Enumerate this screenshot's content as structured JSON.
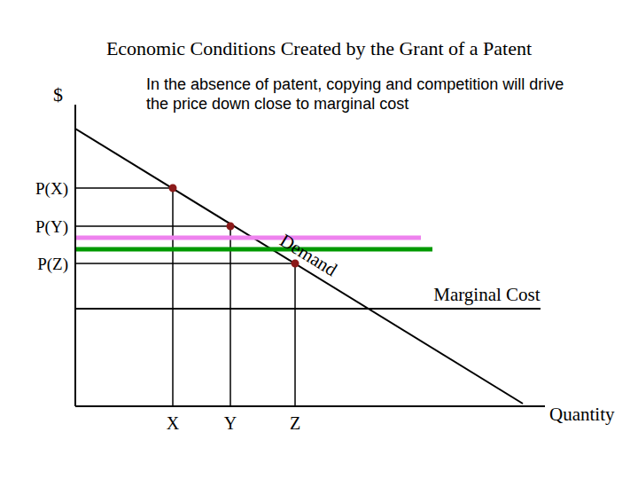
{
  "chart_data": {
    "type": "line",
    "title": "Economic Conditions Created by the Grant of a Patent",
    "annotation": "In the absence of patent, copying and competition will drive the price down close to marginal cost",
    "x_label": "Quantity",
    "y_label": "$",
    "xlim": [
      0,
      53
    ],
    "ylim": [
      0,
      34
    ],
    "xticks": [
      {
        "value": 11,
        "label": "X"
      },
      {
        "value": 17.5,
        "label": "Y"
      },
      {
        "value": 24.8,
        "label": "Z"
      }
    ],
    "yticks": [
      {
        "value": 24.6,
        "label": "P(X)"
      },
      {
        "value": 20.3,
        "label": "P(Y)"
      },
      {
        "value": 16.1,
        "label": "P(Z)"
      }
    ],
    "grid": false,
    "series": [
      {
        "name": "Demand",
        "color": "#000000",
        "x": [
          0,
          50.5
        ],
        "values": [
          31.3,
          0.3
        ]
      },
      {
        "name": "Marginal Cost",
        "color": "#000000",
        "x": [
          0,
          52.5
        ],
        "values": [
          11,
          11
        ]
      },
      {
        "color": "#ee82ee",
        "x": [
          0,
          39
        ],
        "values": [
          19,
          19
        ]
      },
      {
        "color": "#009900",
        "x": [
          0,
          40.3
        ],
        "values": [
          17.7,
          17.7
        ]
      },
      {
        "type": "scatter",
        "color": "#8b1a1a",
        "marker": "circle",
        "x": [
          11,
          17.5,
          24.8
        ],
        "values": [
          24.6,
          20.3,
          16.1
        ]
      }
    ]
  }
}
